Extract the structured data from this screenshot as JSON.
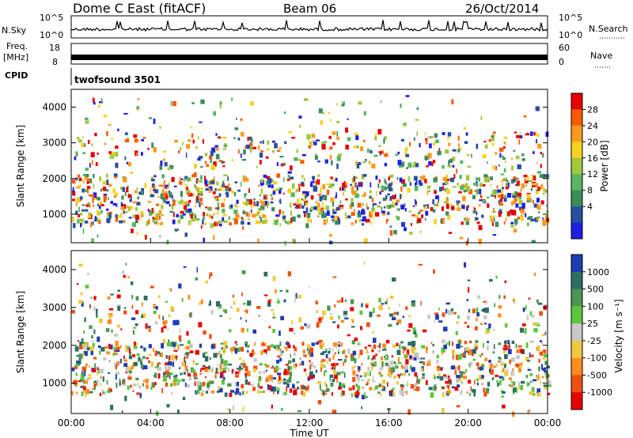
{
  "header": {
    "site": "Dome C East (fitACF)",
    "beam": "Beam 06",
    "date": "26/Oct/2014"
  },
  "top_panels": {
    "nsky_label": "N.Sky",
    "nsky_ticks": [
      "10^5",
      "10^0"
    ],
    "nsearch_label": "N.Search",
    "nsearch_ticks": [
      "10^5",
      "10^0"
    ],
    "freq_label": "Freq.",
    "freq_unit": "[MHz]",
    "freq_ticks": [
      "18",
      "8"
    ],
    "nave_label": "Nave",
    "nave_ticks": [
      "60",
      "0"
    ],
    "cpid_label": "CPID",
    "cpid_value": "twofsound 3501"
  },
  "chart_data": [
    {
      "type": "heatmap",
      "name": "power",
      "ylabel": "Slant Range [km]",
      "yticks": [
        "4000",
        "3000",
        "2000",
        "1000"
      ],
      "ylim": [
        200,
        4500
      ],
      "x": [
        "00:00",
        "04:00",
        "08:00",
        "12:00",
        "16:00",
        "20:00",
        "00:00"
      ],
      "colorbar_label": "Power [dB]",
      "colorbar_ticks": [
        "28",
        "24",
        "20",
        "16",
        "12",
        "8",
        "4"
      ],
      "colors": [
        "#e60000",
        "#ff5a00",
        "#ff9a1e",
        "#f5d21e",
        "#a0c83c",
        "#5ab464",
        "#3c8c5a",
        "#2850a0",
        "#1e1ee6"
      ]
    },
    {
      "type": "heatmap",
      "name": "velocity",
      "ylabel": "Slant Range [km]",
      "yticks": [
        "4000",
        "3000",
        "2000",
        "1000"
      ],
      "ylim": [
        200,
        4500
      ],
      "x": [
        "00:00",
        "04:00",
        "08:00",
        "12:00",
        "16:00",
        "20:00",
        "00:00"
      ],
      "xlabel": "Time UT",
      "colorbar_label": "Velocity [m s⁻¹]",
      "colorbar_ticks": [
        "1000",
        "500",
        "100",
        "25",
        "-25",
        "-100",
        "-500",
        "-1000"
      ],
      "colors": [
        "#1e3cb4",
        "#2d6e64",
        "#4b9650",
        "#5ac83c",
        "#c8c8c8",
        "#f0c83c",
        "#ff8c1e",
        "#f05014",
        "#e60000"
      ]
    }
  ]
}
